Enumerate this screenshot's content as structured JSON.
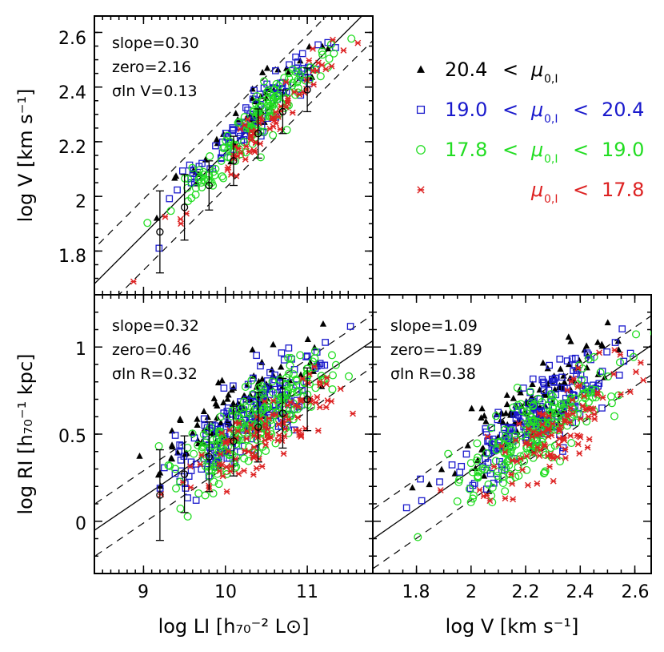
{
  "chart_data": {
    "type": "scatter",
    "colors": {
      "black": "#000000",
      "blue": "#1a1acc",
      "green": "#22dd22",
      "red": "#dd2222"
    },
    "legend": [
      {
        "series": "faint",
        "marker": "filled-triangle",
        "color": "#000000",
        "lo": "20.4",
        "sym": "<",
        "mu": "μ",
        "sub": "0,I",
        "hi": "",
        "sym2": ""
      },
      {
        "series": "mid",
        "marker": "open-square",
        "color": "#1a1acc",
        "lo": "19.0",
        "sym": "<",
        "mu": "μ",
        "sub": "0,I",
        "hi": "20.4",
        "sym2": "<"
      },
      {
        "series": "bright",
        "marker": "open-circle",
        "color": "#22dd22",
        "lo": "17.8",
        "sym": "<",
        "mu": "μ",
        "sub": "0,I",
        "hi": "19.0",
        "sym2": "<"
      },
      {
        "series": "hsb",
        "marker": "star",
        "color": "#dd2222",
        "lo": "",
        "sym": "",
        "mu": "μ",
        "sub": "0,I",
        "hi": "17.8",
        "sym2": "<"
      }
    ],
    "panels": [
      {
        "id": "VL",
        "xlim": [
          8.4,
          11.8
        ],
        "ylim": [
          1.64,
          2.66
        ],
        "xticks": [],
        "yticks": [
          "1.8",
          "2",
          "2.2",
          "2.4",
          "2.6"
        ],
        "xlabel": "",
        "ylabel": "log V [km s⁻¹]",
        "stats": [
          "slope=0.30",
          "zero=2.16",
          "σln V=0.13"
        ],
        "fit": {
          "slope": 0.3,
          "zero": 2.16,
          "x0": 10.0,
          "scatter": 0.13
        },
        "cloud": {
          "xc": 10.35,
          "xs": 0.48,
          "scatter": 0.055
        },
        "binned": [
          {
            "x": 9.2,
            "y": 1.87,
            "err": 0.15
          },
          {
            "x": 9.5,
            "y": 1.96,
            "err": 0.12
          },
          {
            "x": 9.8,
            "y": 2.04,
            "err": 0.09
          },
          {
            "x": 10.1,
            "y": 2.13,
            "err": 0.09
          },
          {
            "x": 10.4,
            "y": 2.23,
            "err": 0.09
          },
          {
            "x": 10.7,
            "y": 2.31,
            "err": 0.08
          },
          {
            "x": 11.0,
            "y": 2.39,
            "err": 0.08
          }
        ]
      },
      {
        "id": "RL",
        "xlim": [
          8.4,
          11.8
        ],
        "ylim": [
          -0.3,
          1.3
        ],
        "xticks": [
          "9",
          "10",
          "11"
        ],
        "yticks": [
          "0",
          "0.5",
          "1"
        ],
        "xlabel": "log LI [h₇₀⁻² L⊙]",
        "ylabel": "log RI [h₇₀⁻¹ kpc]",
        "stats": [
          "slope=0.32",
          "zero=0.46",
          "σln R=0.32"
        ],
        "fit": {
          "slope": 0.32,
          "zero": 0.46,
          "x0": 10.0,
          "scatter": 0.15
        },
        "cloud": {
          "xc": 10.35,
          "xs": 0.48,
          "scatter": 0.13
        },
        "binned": [
          {
            "x": 9.2,
            "y": 0.15,
            "err": 0.26
          },
          {
            "x": 9.5,
            "y": 0.27,
            "err": 0.22
          },
          {
            "x": 9.8,
            "y": 0.37,
            "err": 0.2
          },
          {
            "x": 10.1,
            "y": 0.46,
            "err": 0.2
          },
          {
            "x": 10.4,
            "y": 0.54,
            "err": 0.2
          },
          {
            "x": 10.7,
            "y": 0.62,
            "err": 0.2
          },
          {
            "x": 11.0,
            "y": 0.7,
            "err": 0.18
          }
        ]
      },
      {
        "id": "RV",
        "xlim": [
          1.64,
          2.66
        ],
        "ylim": [
          -0.3,
          1.3
        ],
        "xticks": [
          "1.8",
          "2",
          "2.2",
          "2.4",
          "2.6"
        ],
        "yticks": [],
        "xlabel": "log V [km s⁻¹]",
        "ylabel": "",
        "stats": [
          "slope=1.09",
          "zero=−1.89",
          "σln R=0.38"
        ],
        "fit": {
          "slope": 1.09,
          "zero": -1.89,
          "x0": 0.0,
          "scatter": 0.17
        },
        "cloud": {
          "xc": 2.25,
          "xs": 0.14,
          "scatter": 0.14
        },
        "binned": []
      }
    ]
  }
}
